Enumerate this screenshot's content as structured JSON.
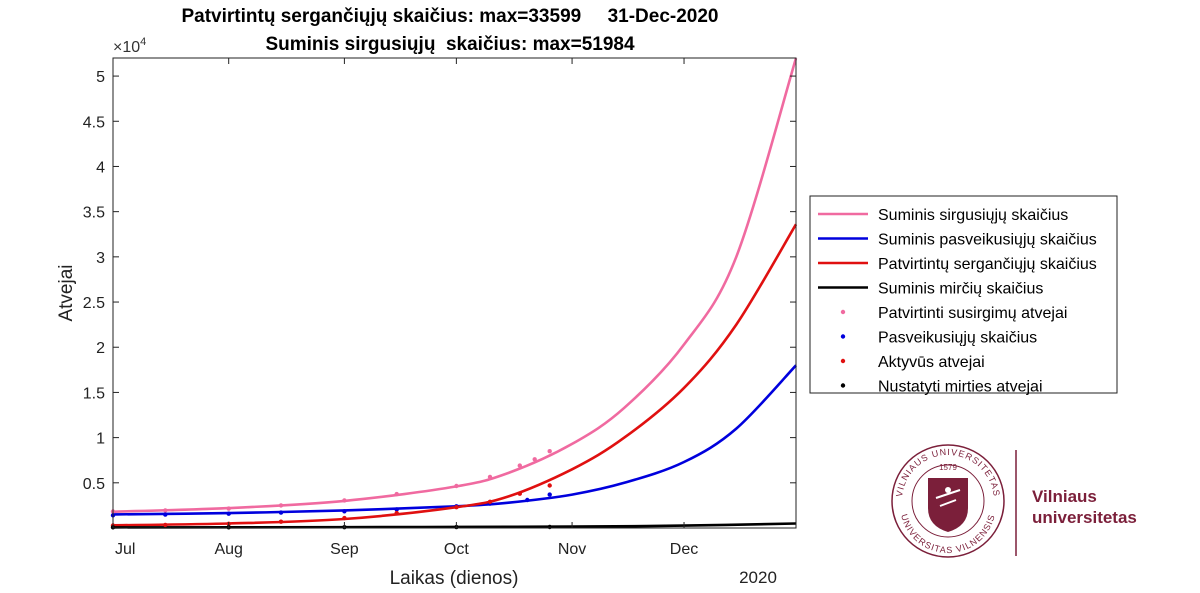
{
  "chart_data": {
    "type": "line",
    "title": "Patvirtintų sergančiųjų skaičius: max=33599     31-Dec-2020",
    "subtitle": "Suminis sirgusiųjų  skaičius: max=51984",
    "xlabel": "Laikas (dienos)",
    "ylabel": "Atvejai",
    "year_label": "2020",
    "exponent_label": "×10",
    "exponent_power": "4",
    "xlim": [
      "2020-07-01",
      "2020-12-31"
    ],
    "ylim": [
      0,
      52000
    ],
    "x_ticks": [
      "Jul",
      "Aug",
      "Sep",
      "Oct",
      "Nov",
      "Dec"
    ],
    "x_tick_dates": [
      "2020-07-01",
      "2020-08-01",
      "2020-09-01",
      "2020-10-01",
      "2020-11-01",
      "2020-12-01"
    ],
    "y_ticks": [
      5000,
      10000,
      15000,
      20000,
      25000,
      30000,
      35000,
      40000,
      45000,
      50000
    ],
    "y_tick_labels": [
      "0.5",
      "1",
      "1.5",
      "2",
      "2.5",
      "3",
      "3.5",
      "4",
      "4.5",
      "5"
    ],
    "grid": false,
    "legend_position": "right",
    "series": [
      {
        "name": "Suminis sirgusiųjų skaičius",
        "kind": "line",
        "color": "#f06aa0",
        "dates": [
          "2020-07-01",
          "2020-08-01",
          "2020-09-01",
          "2020-10-01",
          "2020-10-15",
          "2020-11-01",
          "2020-11-15",
          "2020-12-01",
          "2020-12-15",
          "2020-12-31"
        ],
        "values": [
          1800,
          2200,
          3000,
          4600,
          6100,
          9300,
          13300,
          20300,
          30000,
          51984
        ]
      },
      {
        "name": "Suminis pasveikusiųjų skaičius",
        "kind": "line",
        "color": "#0000dd",
        "dates": [
          "2020-07-01",
          "2020-08-01",
          "2020-09-01",
          "2020-10-01",
          "2020-10-15",
          "2020-11-01",
          "2020-11-15",
          "2020-12-01",
          "2020-12-15",
          "2020-12-31"
        ],
        "values": [
          1500,
          1650,
          1950,
          2400,
          2800,
          3700,
          5000,
          7300,
          11000,
          18000
        ]
      },
      {
        "name": "Patvirtintų sergančiųjų skaičius",
        "kind": "line",
        "color": "#e01010",
        "dates": [
          "2020-07-01",
          "2020-08-01",
          "2020-09-01",
          "2020-10-01",
          "2020-10-15",
          "2020-11-01",
          "2020-11-15",
          "2020-12-01",
          "2020-12-15",
          "2020-12-31"
        ],
        "values": [
          300,
          500,
          1000,
          2300,
          3500,
          6500,
          10000,
          15500,
          22500,
          33599
        ]
      },
      {
        "name": "Suminis mirčių skaičius",
        "kind": "line",
        "color": "#000000",
        "dates": [
          "2020-07-01",
          "2020-09-01",
          "2020-10-01",
          "2020-11-01",
          "2020-12-01",
          "2020-12-31"
        ],
        "values": [
          70,
          90,
          120,
          160,
          260,
          500
        ]
      },
      {
        "name": "Patvirtinti susirgimų atvejai",
        "kind": "points",
        "color": "#f06aa0",
        "dates": [
          "2020-07-01",
          "2020-07-15",
          "2020-08-01",
          "2020-08-15",
          "2020-09-01",
          "2020-09-15",
          "2020-10-01",
          "2020-10-10",
          "2020-10-18",
          "2020-10-22",
          "2020-10-26"
        ],
        "values": [
          1830,
          1950,
          2150,
          2500,
          3050,
          3750,
          4650,
          5650,
          6900,
          7600,
          8500
        ]
      },
      {
        "name": "Pasveikusiųjų skaičius",
        "kind": "points",
        "color": "#0000dd",
        "dates": [
          "2020-07-01",
          "2020-07-15",
          "2020-08-01",
          "2020-08-15",
          "2020-09-01",
          "2020-09-15",
          "2020-10-01",
          "2020-10-10",
          "2020-10-20",
          "2020-10-26"
        ],
        "values": [
          1400,
          1480,
          1580,
          1700,
          1850,
          2050,
          2400,
          2700,
          3100,
          3700
        ]
      },
      {
        "name": "Aktyvūs atvejai",
        "kind": "points",
        "color": "#e01010",
        "dates": [
          "2020-07-01",
          "2020-07-15",
          "2020-08-01",
          "2020-08-15",
          "2020-09-01",
          "2020-09-15",
          "2020-10-01",
          "2020-10-10",
          "2020-10-18",
          "2020-10-26"
        ],
        "values": [
          280,
          340,
          460,
          700,
          1100,
          1650,
          2300,
          2900,
          3800,
          4700
        ]
      },
      {
        "name": "Nustatyti mirties atvejai",
        "kind": "points",
        "color": "#000000",
        "dates": [
          "2020-07-01",
          "2020-08-01",
          "2020-09-01",
          "2020-10-01",
          "2020-10-26"
        ],
        "values": [
          78,
          80,
          86,
          95,
          110
        ]
      }
    ]
  },
  "logo": {
    "name_line1": "Vilniaus",
    "name_line2": "universitetas",
    "seal_year": "1579",
    "seal_text_top": "VILNIAUS UNIVERSITETAS",
    "seal_text_bottom": "UNIVERSITAS VILNENSIS",
    "color": "#7b1f3a"
  }
}
